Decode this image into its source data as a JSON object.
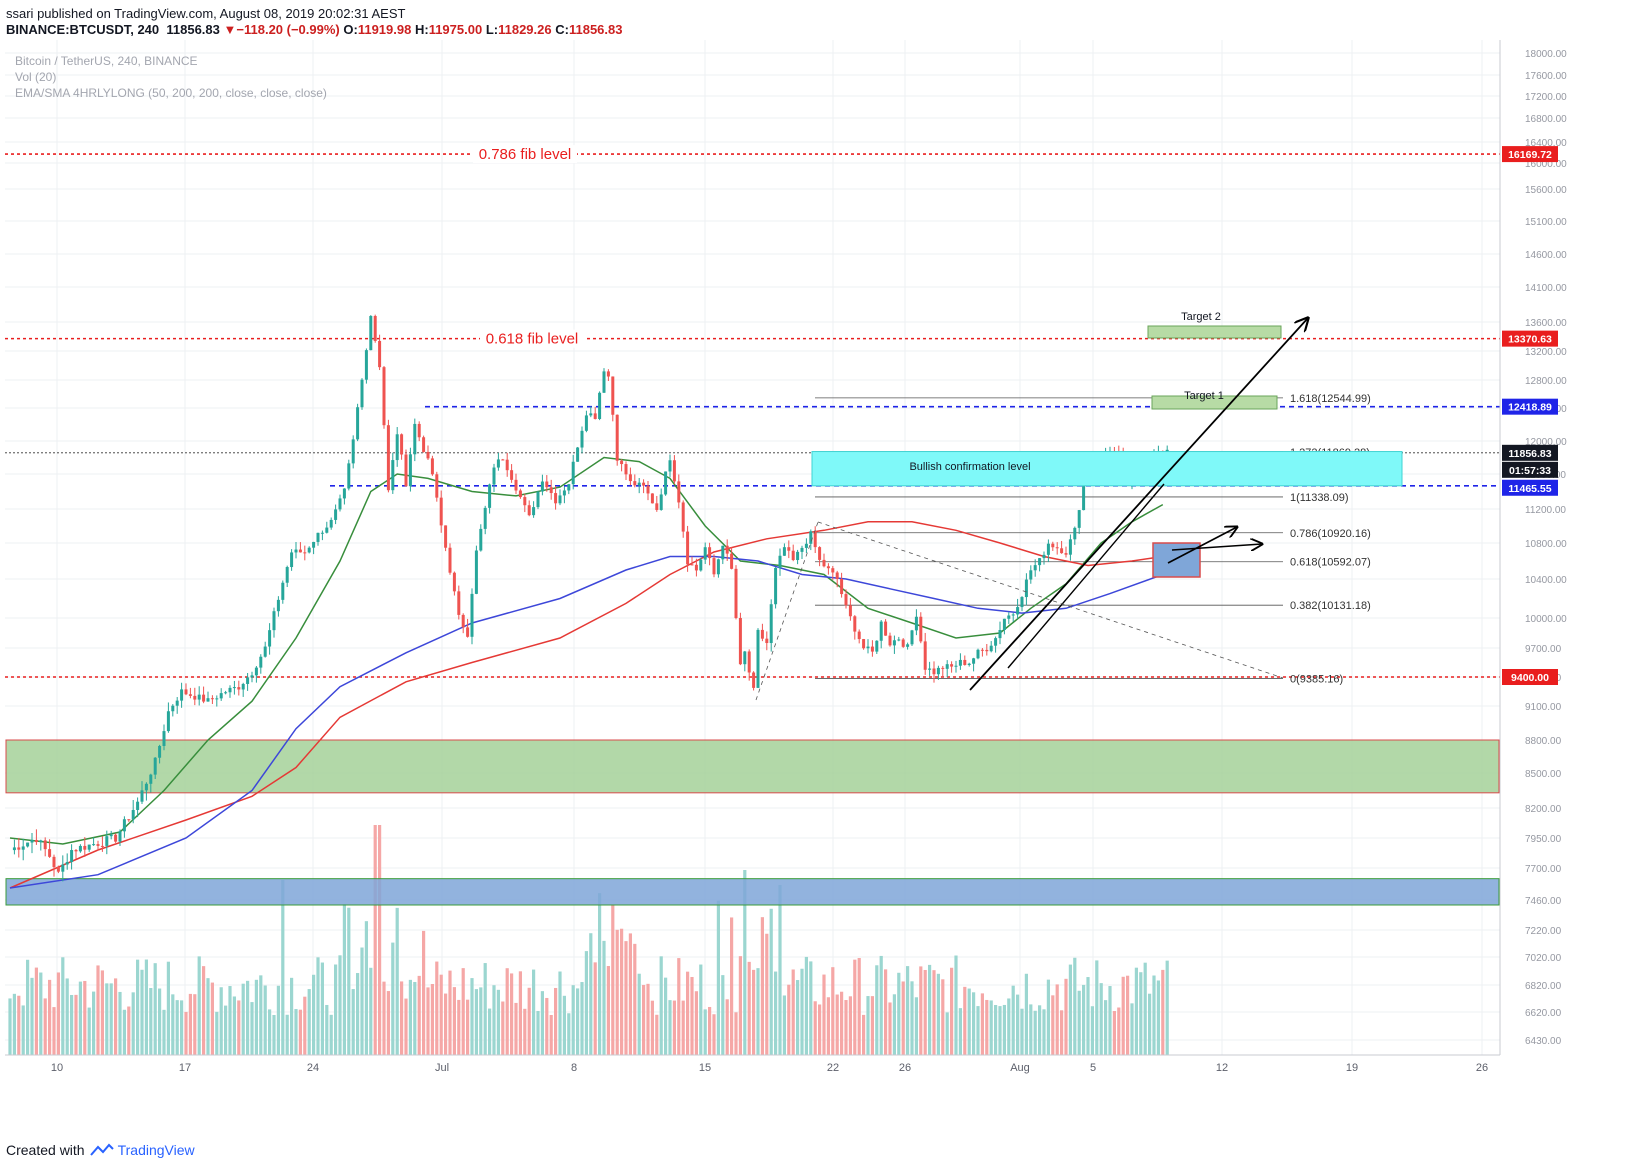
{
  "header": {
    "user": "ssari",
    "published": "published on TradingView.com, August 08, 2019 20:02:31 AEST",
    "symbol": "BINANCE:BTCUSDT, 240",
    "last": "11856.83",
    "change": "−118.20 (−0.99%)",
    "o_label": "O:",
    "o_value": "11919.98",
    "h_label": "H:",
    "h_value": "11975.00",
    "l_label": "L:",
    "l_value": "11829.26",
    "c_label": "C:",
    "c_value": "11856.83"
  },
  "legend": {
    "series": "Bitcoin / TetherUS, 240, BINANCE",
    "volume": "Vol (20)",
    "indicator": "EMA/SMA 4HRLYLONG (50, 200, 200, close, close, close)"
  },
  "footer": {
    "created": "Created with",
    "brand": "TradingView"
  },
  "colors": {
    "up": "#26a69a",
    "down": "#ef5350",
    "fib_red": "#e91e1e",
    "blue_dash": "#1f24e8",
    "ema50": "#388e3c",
    "ema200": "#e53935",
    "sma200": "#3d47d9",
    "green_zone": "#a5d199",
    "blue_zone": "#7fa6d8",
    "cyan_box": "#7ff9f9",
    "target": "#b7dba5"
  },
  "chart_data": {
    "type": "candlestick",
    "title": "",
    "y_axis_ticks": [
      6430,
      6620,
      6820,
      7020,
      7220,
      7460,
      7700,
      7950,
      8200,
      8500,
      8800,
      9100,
      9400,
      9700,
      10000,
      10400,
      10800,
      11200,
      11600,
      12000,
      12400,
      12800,
      13200,
      13600,
      14100,
      14600,
      15100,
      15600,
      16000,
      16400,
      16800,
      17200,
      17600,
      18000
    ],
    "x_axis_ticks": [
      "10",
      "17",
      "24",
      "Jul",
      "8",
      "15",
      "22",
      "26",
      "Aug",
      "5",
      "12",
      "19",
      "26"
    ],
    "price_labels": [
      {
        "value": "16169.72",
        "kind": "red"
      },
      {
        "value": "13370.63",
        "kind": "red"
      },
      {
        "value": "12418.89",
        "kind": "blue"
      },
      {
        "value": "11856.83",
        "kind": "last"
      },
      {
        "value": "01:57:33",
        "kind": "timer"
      },
      {
        "value": "11465.55",
        "kind": "blue"
      },
      {
        "value": "9400.00",
        "kind": "red"
      }
    ],
    "horizontal_levels": [
      {
        "price": 16169.72,
        "label": "0.786 fib level",
        "style": "red-dotted"
      },
      {
        "price": 13370.63,
        "label": "0.618 fib level",
        "style": "red-dotted"
      },
      {
        "price": 12418.89,
        "label": "",
        "style": "blue-dashed"
      },
      {
        "price": 11465.55,
        "label": "",
        "style": "blue-dashed"
      },
      {
        "price": 9400.0,
        "label": "",
        "style": "red-dotted"
      }
    ],
    "fib_extension": [
      {
        "ratio": "1.618",
        "price": "12544.99",
        "label": "1.618(12544.99)"
      },
      {
        "ratio": "1.272",
        "price": "11869.28",
        "label": "1.272(11869.28)"
      },
      {
        "ratio": "1",
        "price": "11338.09",
        "label": "1(11338.09)"
      },
      {
        "ratio": "0.786",
        "price": "10920.16",
        "label": "0.786(10920.16)"
      },
      {
        "ratio": "0.618",
        "price": "10592.07",
        "label": "0.618(10592.07)"
      },
      {
        "ratio": "0.382",
        "price": "10131.18",
        "label": "0.382(10131.18)"
      },
      {
        "ratio": "0",
        "price": "9385.16",
        "label": "0(9385.16)"
      }
    ],
    "zones": [
      {
        "name": "green-support",
        "top": 8800,
        "bottom": 8330
      },
      {
        "name": "blue-support",
        "top": 7620,
        "bottom": 7420
      }
    ],
    "annotations": [
      {
        "text": "Bullish confirmation level"
      },
      {
        "text": "Target 1"
      },
      {
        "text": "Target 2"
      }
    ],
    "ohlc_waypoints": [
      [
        0,
        7850
      ],
      [
        6,
        7950
      ],
      [
        9,
        7800
      ],
      [
        11,
        7650
      ],
      [
        14,
        7850
      ],
      [
        19,
        7900
      ],
      [
        24,
        7950
      ],
      [
        29,
        8250
      ],
      [
        33,
        8600
      ],
      [
        36,
        9050
      ],
      [
        39,
        9250
      ],
      [
        42,
        9200
      ],
      [
        45,
        9150
      ],
      [
        49,
        9250
      ],
      [
        52,
        9300
      ],
      [
        55,
        9450
      ],
      [
        58,
        9700
      ],
      [
        61,
        10200
      ],
      [
        64,
        10700
      ],
      [
        67,
        10700
      ],
      [
        70,
        10900
      ],
      [
        73,
        11050
      ],
      [
        76,
        11400
      ],
      [
        78,
        12000
      ],
      [
        80,
        12800
      ],
      [
        82,
        13700
      ],
      [
        84,
        13000
      ],
      [
        86,
        11400
      ],
      [
        88,
        12100
      ],
      [
        90,
        11500
      ],
      [
        92,
        12200
      ],
      [
        94,
        11900
      ],
      [
        96,
        11600
      ],
      [
        98,
        11000
      ],
      [
        100,
        10500
      ],
      [
        102,
        10000
      ],
      [
        104,
        9850
      ],
      [
        106,
        10700
      ],
      [
        108,
        11200
      ],
      [
        110,
        11700
      ],
      [
        112,
        11800
      ],
      [
        115,
        11450
      ],
      [
        118,
        11100
      ],
      [
        121,
        11550
      ],
      [
        124,
        11300
      ],
      [
        127,
        11500
      ],
      [
        129,
        11950
      ],
      [
        131,
        12350
      ],
      [
        133,
        12300
      ],
      [
        135,
        12950
      ],
      [
        136,
        12850
      ],
      [
        138,
        11800
      ],
      [
        141,
        11500
      ],
      [
        144,
        11450
      ],
      [
        147,
        11200
      ],
      [
        150,
        11800
      ],
      [
        152,
        11300
      ],
      [
        154,
        10600
      ],
      [
        156,
        10500
      ],
      [
        158,
        10750
      ],
      [
        160,
        10450
      ],
      [
        162,
        10800
      ],
      [
        164,
        10500
      ],
      [
        166,
        9500
      ],
      [
        167,
        9650
      ],
      [
        169,
        9250
      ],
      [
        170,
        9850
      ],
      [
        172,
        9750
      ],
      [
        174,
        10500
      ],
      [
        176,
        10750
      ],
      [
        178,
        10600
      ],
      [
        180,
        10750
      ],
      [
        182,
        10900
      ],
      [
        184,
        10600
      ],
      [
        186,
        10500
      ],
      [
        188,
        10400
      ],
      [
        190,
        10100
      ],
      [
        192,
        9900
      ],
      [
        194,
        9700
      ],
      [
        196,
        9650
      ],
      [
        198,
        9950
      ],
      [
        200,
        9750
      ],
      [
        202,
        9800
      ],
      [
        204,
        9700
      ],
      [
        206,
        10050
      ],
      [
        208,
        9500
      ],
      [
        210,
        9450
      ],
      [
        212,
        9500
      ],
      [
        214,
        9500
      ],
      [
        216,
        9550
      ],
      [
        218,
        9550
      ],
      [
        220,
        9650
      ],
      [
        222,
        9700
      ],
      [
        224,
        9800
      ],
      [
        226,
        10000
      ],
      [
        228,
        10050
      ],
      [
        230,
        10250
      ],
      [
        232,
        10500
      ],
      [
        234,
        10600
      ],
      [
        236,
        10800
      ],
      [
        238,
        10750
      ],
      [
        240,
        10700
      ],
      [
        242,
        10950
      ],
      [
        244,
        11500
      ],
      [
        246,
        11750
      ],
      [
        248,
        11800
      ],
      [
        250,
        11900
      ],
      [
        252,
        11800
      ],
      [
        254,
        11500
      ],
      [
        256,
        11700
      ],
      [
        258,
        11800
      ],
      [
        260,
        11856
      ]
    ],
    "moving_averages": [
      {
        "name": "EMA 50",
        "color": "#388e3c",
        "points": [
          [
            0,
            7950
          ],
          [
            12,
            7900
          ],
          [
            25,
            8000
          ],
          [
            35,
            8350
          ],
          [
            45,
            8800
          ],
          [
            55,
            9150
          ],
          [
            65,
            9800
          ],
          [
            75,
            10600
          ],
          [
            82,
            11400
          ],
          [
            88,
            11600
          ],
          [
            95,
            11550
          ],
          [
            105,
            11400
          ],
          [
            115,
            11350
          ],
          [
            125,
            11450
          ],
          [
            135,
            11800
          ],
          [
            143,
            11750
          ],
          [
            150,
            11550
          ],
          [
            158,
            11000
          ],
          [
            166,
            10600
          ],
          [
            175,
            10550
          ],
          [
            185,
            10450
          ],
          [
            195,
            10100
          ],
          [
            205,
            9950
          ],
          [
            215,
            9800
          ],
          [
            225,
            9850
          ],
          [
            232,
            10100
          ],
          [
            240,
            10350
          ],
          [
            248,
            10800
          ],
          [
            255,
            11050
          ],
          [
            262,
            11250
          ]
        ]
      },
      {
        "name": "EMA 200",
        "color": "#e53935",
        "points": [
          [
            0,
            7550
          ],
          [
            20,
            7850
          ],
          [
            40,
            8100
          ],
          [
            55,
            8300
          ],
          [
            65,
            8550
          ],
          [
            75,
            9000
          ],
          [
            90,
            9350
          ],
          [
            105,
            9550
          ],
          [
            125,
            9800
          ],
          [
            140,
            10150
          ],
          [
            150,
            10450
          ],
          [
            160,
            10700
          ],
          [
            172,
            10850
          ],
          [
            185,
            10950
          ],
          [
            195,
            11050
          ],
          [
            205,
            11050
          ],
          [
            215,
            10950
          ],
          [
            225,
            10800
          ],
          [
            235,
            10650
          ],
          [
            245,
            10550
          ],
          [
            255,
            10600
          ],
          [
            262,
            10650
          ]
        ]
      },
      {
        "name": "SMA 200",
        "color": "#3d47d9",
        "points": [
          [
            0,
            7550
          ],
          [
            20,
            7650
          ],
          [
            40,
            7950
          ],
          [
            55,
            8350
          ],
          [
            65,
            8900
          ],
          [
            75,
            9300
          ],
          [
            90,
            9650
          ],
          [
            105,
            9950
          ],
          [
            125,
            10200
          ],
          [
            140,
            10500
          ],
          [
            150,
            10650
          ],
          [
            160,
            10650
          ],
          [
            170,
            10600
          ],
          [
            180,
            10450
          ],
          [
            190,
            10400
          ],
          [
            200,
            10300
          ],
          [
            210,
            10200
          ],
          [
            220,
            10100
          ],
          [
            230,
            10050
          ],
          [
            240,
            10100
          ],
          [
            250,
            10250
          ],
          [
            262,
            10450
          ]
        ]
      }
    ]
  }
}
